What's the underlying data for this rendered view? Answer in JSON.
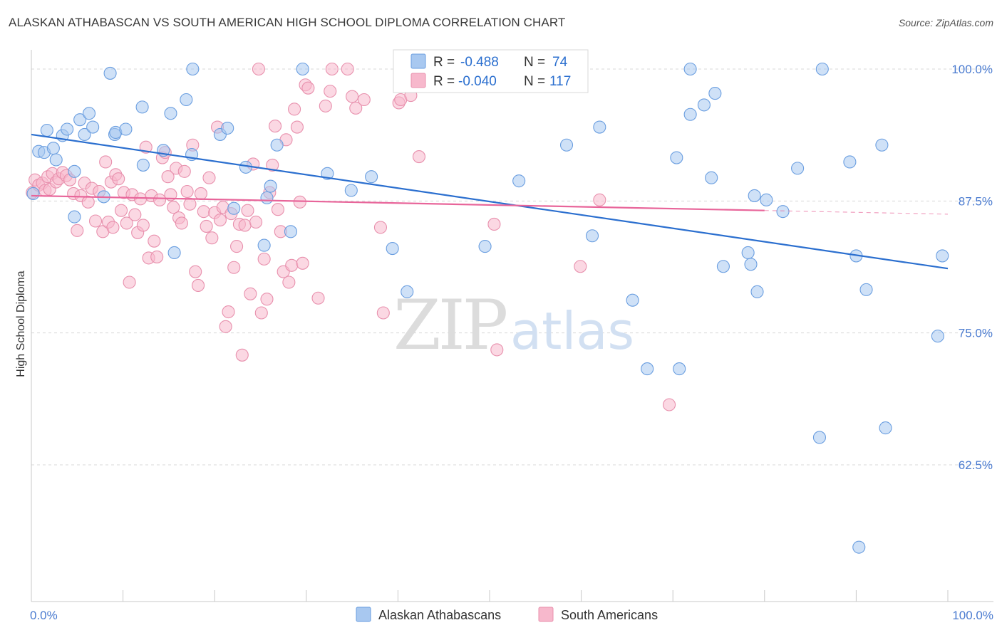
{
  "header": {
    "title": "ALASKAN ATHABASCAN VS SOUTH AMERICAN HIGH SCHOOL DIPLOMA CORRELATION CHART",
    "source": "Source: ZipAtlas.com"
  },
  "watermark": {
    "zip": "ZIP",
    "atlas": "atlas"
  },
  "legend_top": {
    "rows": [
      {
        "r_label": "R = ",
        "r_value": "-0.488",
        "n_label": "N = ",
        "n_value": "74",
        "color": "#a8c8f0"
      },
      {
        "r_label": "R = ",
        "r_value": "-0.040",
        "n_label": "N = ",
        "n_value": "117",
        "color": "#f7b8cc"
      }
    ]
  },
  "legend_bottom": [
    {
      "label": "Alaskan Athabascans",
      "color": "#a8c8f0"
    },
    {
      "label": "South Americans",
      "color": "#f7b8cc"
    }
  ],
  "colors": {
    "blue_fill": "#a8c8f0",
    "blue_stroke": "#6a9ee0",
    "blue_line": "#2b6fcf",
    "pink_fill": "#f7b8cc",
    "pink_stroke": "#e890ad",
    "pink_line": "#e8659a",
    "axis_text": "#4a7bd0",
    "grid": "#d8d8d8"
  },
  "chart_data": {
    "type": "scatter",
    "title": "ALASKAN ATHABASCAN VS SOUTH AMERICAN HIGH SCHOOL DIPLOMA CORRELATION CHART",
    "xlabel": "",
    "ylabel": "High School Diploma",
    "xlim": [
      0,
      100
    ],
    "ylim": [
      51.5,
      101.2
    ],
    "x_tick_labels": [
      "0.0%",
      "100.0%"
    ],
    "y_ticks": [
      62.5,
      75.0,
      87.5,
      100.0
    ],
    "y_tick_labels": [
      "62.5%",
      "75.0%",
      "87.5%",
      "100.0%"
    ],
    "grid": "horizontal dashed",
    "series": [
      {
        "name": "Alaskan Athabascans",
        "r": -0.488,
        "n": 74,
        "trend": {
          "x": [
            0,
            100
          ],
          "y": [
            93.8,
            81.1
          ]
        },
        "points": [
          [
            0.2,
            88.2
          ],
          [
            0.8,
            92.2
          ],
          [
            1.4,
            92.1
          ],
          [
            1.7,
            94.2
          ],
          [
            2.4,
            92.5
          ],
          [
            2.7,
            91.4
          ],
          [
            3.4,
            93.7
          ],
          [
            3.9,
            94.3
          ],
          [
            4.7,
            90.3
          ],
          [
            4.7,
            86.0
          ],
          [
            5.3,
            95.2
          ],
          [
            5.8,
            93.8
          ],
          [
            6.3,
            95.8
          ],
          [
            6.7,
            94.5
          ],
          [
            7.9,
            87.9
          ],
          [
            8.6,
            99.6
          ],
          [
            9.1,
            93.8
          ],
          [
            9.2,
            94.0
          ],
          [
            10.3,
            94.3
          ],
          [
            12.1,
            96.4
          ],
          [
            12.2,
            90.9
          ],
          [
            14.4,
            92.3
          ],
          [
            15.2,
            95.8
          ],
          [
            15.6,
            82.6
          ],
          [
            16.9,
            97.1
          ],
          [
            17.6,
            100.0
          ],
          [
            17.5,
            91.9
          ],
          [
            20.6,
            93.8
          ],
          [
            21.4,
            94.4
          ],
          [
            22.1,
            86.8
          ],
          [
            23.4,
            90.7
          ],
          [
            25.4,
            83.3
          ],
          [
            25.7,
            87.8
          ],
          [
            26.1,
            88.9
          ],
          [
            26.8,
            92.8
          ],
          [
            28.3,
            84.6
          ],
          [
            29.6,
            100.0
          ],
          [
            32.3,
            90.1
          ],
          [
            34.9,
            88.5
          ],
          [
            37.1,
            89.8
          ],
          [
            39.4,
            83.0
          ],
          [
            41.0,
            78.9
          ],
          [
            49.5,
            83.2
          ],
          [
            53.2,
            89.4
          ],
          [
            58.4,
            92.8
          ],
          [
            61.2,
            84.2
          ],
          [
            62.0,
            94.5
          ],
          [
            65.6,
            78.1
          ],
          [
            67.2,
            71.6
          ],
          [
            70.7,
            71.6
          ],
          [
            70.4,
            91.6
          ],
          [
            71.9,
            100.0
          ],
          [
            71.9,
            95.7
          ],
          [
            73.4,
            96.6
          ],
          [
            74.2,
            89.7
          ],
          [
            74.6,
            97.7
          ],
          [
            75.5,
            81.3
          ],
          [
            78.2,
            82.6
          ],
          [
            78.5,
            81.5
          ],
          [
            78.9,
            88.0
          ],
          [
            79.2,
            78.9
          ],
          [
            80.2,
            87.6
          ],
          [
            82.0,
            86.5
          ],
          [
            83.6,
            90.6
          ],
          [
            86.0,
            65.1
          ],
          [
            86.3,
            100.0
          ],
          [
            89.3,
            91.2
          ],
          [
            90.0,
            82.3
          ],
          [
            90.3,
            54.7
          ],
          [
            91.1,
            79.1
          ],
          [
            92.8,
            92.8
          ],
          [
            93.2,
            66.0
          ],
          [
            98.9,
            74.7
          ],
          [
            99.4,
            82.3
          ]
        ]
      },
      {
        "name": "South Americans",
        "r": -0.04,
        "n": 117,
        "trend": {
          "x": [
            0,
            80
          ],
          "y": [
            88.0,
            86.6
          ]
        },
        "points": [
          [
            0.1,
            88.3
          ],
          [
            0.4,
            89.5
          ],
          [
            0.8,
            89.0
          ],
          [
            1.2,
            89.2
          ],
          [
            1.5,
            88.5
          ],
          [
            1.8,
            89.8
          ],
          [
            2.0,
            88.6
          ],
          [
            2.3,
            90.1
          ],
          [
            2.7,
            89.3
          ],
          [
            3.0,
            89.6
          ],
          [
            3.4,
            90.2
          ],
          [
            3.8,
            89.9
          ],
          [
            4.2,
            89.5
          ],
          [
            4.6,
            88.2
          ],
          [
            5.0,
            84.7
          ],
          [
            5.4,
            88.0
          ],
          [
            5.8,
            89.2
          ],
          [
            6.2,
            87.4
          ],
          [
            6.6,
            88.7
          ],
          [
            7.0,
            85.6
          ],
          [
            7.4,
            88.4
          ],
          [
            7.8,
            84.6
          ],
          [
            8.1,
            91.2
          ],
          [
            8.4,
            85.5
          ],
          [
            8.7,
            89.3
          ],
          [
            8.9,
            85.0
          ],
          [
            9.2,
            90.0
          ],
          [
            9.5,
            89.6
          ],
          [
            9.8,
            86.6
          ],
          [
            10.1,
            88.3
          ],
          [
            10.4,
            85.4
          ],
          [
            10.7,
            79.8
          ],
          [
            11.0,
            88.1
          ],
          [
            11.3,
            86.2
          ],
          [
            11.6,
            84.5
          ],
          [
            11.9,
            87.7
          ],
          [
            12.2,
            85.2
          ],
          [
            12.5,
            92.6
          ],
          [
            12.8,
            82.1
          ],
          [
            13.1,
            88.0
          ],
          [
            13.4,
            83.7
          ],
          [
            13.7,
            82.2
          ],
          [
            14.0,
            87.6
          ],
          [
            14.3,
            91.6
          ],
          [
            14.6,
            92.1
          ],
          [
            14.9,
            89.8
          ],
          [
            15.2,
            88.1
          ],
          [
            15.5,
            86.9
          ],
          [
            15.8,
            90.6
          ],
          [
            16.1,
            85.9
          ],
          [
            16.4,
            85.4
          ],
          [
            16.7,
            90.3
          ],
          [
            17.0,
            88.4
          ],
          [
            17.3,
            87.2
          ],
          [
            17.6,
            92.8
          ],
          [
            17.9,
            80.8
          ],
          [
            18.2,
            79.5
          ],
          [
            18.5,
            88.2
          ],
          [
            18.8,
            86.5
          ],
          [
            19.1,
            85.1
          ],
          [
            19.4,
            89.7
          ],
          [
            19.7,
            84.0
          ],
          [
            20.0,
            86.4
          ],
          [
            20.3,
            94.5
          ],
          [
            20.6,
            85.7
          ],
          [
            20.9,
            86.9
          ],
          [
            21.2,
            75.6
          ],
          [
            21.5,
            77.0
          ],
          [
            21.8,
            86.3
          ],
          [
            22.1,
            81.2
          ],
          [
            22.4,
            83.2
          ],
          [
            22.7,
            85.3
          ],
          [
            23.0,
            72.9
          ],
          [
            23.3,
            85.2
          ],
          [
            23.6,
            86.6
          ],
          [
            23.9,
            78.7
          ],
          [
            24.2,
            91.0
          ],
          [
            24.5,
            85.5
          ],
          [
            24.8,
            100.0
          ],
          [
            25.1,
            76.9
          ],
          [
            25.4,
            82.0
          ],
          [
            25.7,
            78.2
          ],
          [
            26.0,
            88.3
          ],
          [
            26.3,
            90.9
          ],
          [
            26.6,
            94.6
          ],
          [
            26.9,
            86.7
          ],
          [
            27.2,
            84.6
          ],
          [
            27.5,
            80.8
          ],
          [
            27.8,
            93.3
          ],
          [
            28.1,
            79.8
          ],
          [
            28.4,
            81.4
          ],
          [
            28.7,
            96.2
          ],
          [
            29.0,
            94.5
          ],
          [
            29.3,
            87.4
          ],
          [
            29.6,
            81.6
          ],
          [
            29.9,
            98.5
          ],
          [
            30.2,
            98.2
          ],
          [
            31.3,
            78.3
          ],
          [
            32.1,
            96.5
          ],
          [
            32.6,
            97.9
          ],
          [
            32.8,
            100.0
          ],
          [
            34.5,
            100.0
          ],
          [
            35.0,
            97.4
          ],
          [
            35.4,
            96.3
          ],
          [
            36.3,
            97.1
          ],
          [
            38.1,
            85.0
          ],
          [
            38.4,
            76.9
          ],
          [
            40.1,
            96.8
          ],
          [
            40.3,
            97.1
          ],
          [
            40.5,
            100.0
          ],
          [
            41.4,
            97.5
          ],
          [
            42.3,
            91.7
          ],
          [
            50.5,
            85.3
          ],
          [
            50.8,
            73.4
          ],
          [
            59.9,
            81.3
          ],
          [
            62.0,
            87.6
          ],
          [
            69.6,
            68.2
          ]
        ]
      }
    ]
  }
}
